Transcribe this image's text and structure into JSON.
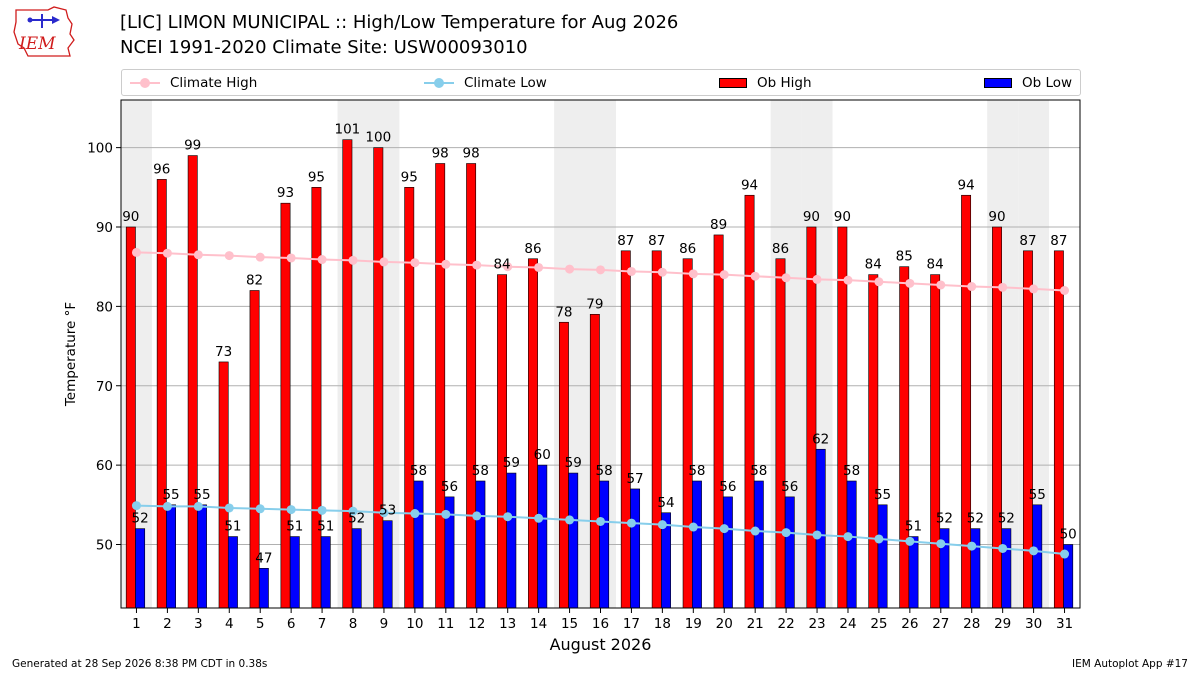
{
  "logo_text": "IEM",
  "title_line1": "[LIC] LIMON MUNICIPAL :: High/Low Temperature for Aug 2026",
  "title_line2": "NCEI 1991-2020 Climate Site: USW00093010",
  "footer_left": "Generated at 28 Sep 2026 8:38 PM CDT in 0.38s",
  "footer_right": "IEM Autoplot App #17",
  "colors": {
    "ob_high": "#ff0000",
    "ob_low": "#0000ff",
    "climate_high": "#ffc0cb",
    "climate_low": "#87ceeb",
    "weekend_shade": "#eeeeee"
  },
  "legend": [
    {
      "label": "Climate High",
      "kind": "line",
      "color": "#ffc0cb"
    },
    {
      "label": "Climate Low",
      "kind": "line",
      "color": "#87ceeb"
    },
    {
      "label": "Ob High",
      "kind": "bar",
      "color": "#ff0000"
    },
    {
      "label": "Ob Low",
      "kind": "bar",
      "color": "#0000ff"
    }
  ],
  "chart_data": {
    "type": "bar",
    "xlabel": "August 2026",
    "ylabel": "Temperature °F",
    "ylim": [
      42,
      106
    ],
    "yticks": [
      50,
      60,
      70,
      80,
      90,
      100
    ],
    "grid": "horizontal",
    "legend_position": "top",
    "categories": [
      1,
      2,
      3,
      4,
      5,
      6,
      7,
      8,
      9,
      10,
      11,
      12,
      13,
      14,
      15,
      16,
      17,
      18,
      19,
      20,
      21,
      22,
      23,
      24,
      25,
      26,
      27,
      28,
      29,
      30,
      31
    ],
    "shaded_days": [
      1,
      8,
      9,
      15,
      16,
      22,
      23,
      29,
      30
    ],
    "series": [
      {
        "name": "Ob High",
        "kind": "bar",
        "color": "#ff0000",
        "values": [
          90,
          96,
          99,
          73,
          82,
          93,
          95,
          101,
          100,
          95,
          98,
          98,
          84,
          86,
          78,
          79,
          87,
          87,
          86,
          89,
          94,
          86,
          90,
          90,
          84,
          85,
          84,
          94,
          90,
          87,
          87
        ]
      },
      {
        "name": "Ob Low",
        "kind": "bar",
        "color": "#0000ff",
        "values": [
          52,
          55,
          55,
          51,
          47,
          51,
          51,
          52,
          53,
          58,
          56,
          58,
          59,
          60,
          59,
          58,
          57,
          54,
          58,
          56,
          58,
          56,
          62,
          58,
          55,
          51,
          52,
          52,
          52,
          55,
          50
        ]
      },
      {
        "name": "Climate High",
        "kind": "line",
        "color": "#ffc0cb",
        "values": [
          86.8,
          86.7,
          86.5,
          86.4,
          86.2,
          86.1,
          85.9,
          85.8,
          85.6,
          85.5,
          85.3,
          85.2,
          85.0,
          84.9,
          84.7,
          84.6,
          84.4,
          84.3,
          84.1,
          84.0,
          83.8,
          83.6,
          83.4,
          83.3,
          83.1,
          82.9,
          82.7,
          82.5,
          82.4,
          82.2,
          82.0
        ]
      },
      {
        "name": "Climate Low",
        "kind": "line",
        "color": "#87ceeb",
        "values": [
          54.9,
          54.8,
          54.8,
          54.6,
          54.5,
          54.4,
          54.3,
          54.2,
          54.0,
          53.9,
          53.8,
          53.6,
          53.5,
          53.3,
          53.1,
          52.9,
          52.7,
          52.5,
          52.2,
          52.0,
          51.7,
          51.5,
          51.2,
          51.0,
          50.7,
          50.4,
          50.1,
          49.8,
          49.5,
          49.2,
          48.8
        ]
      }
    ]
  }
}
